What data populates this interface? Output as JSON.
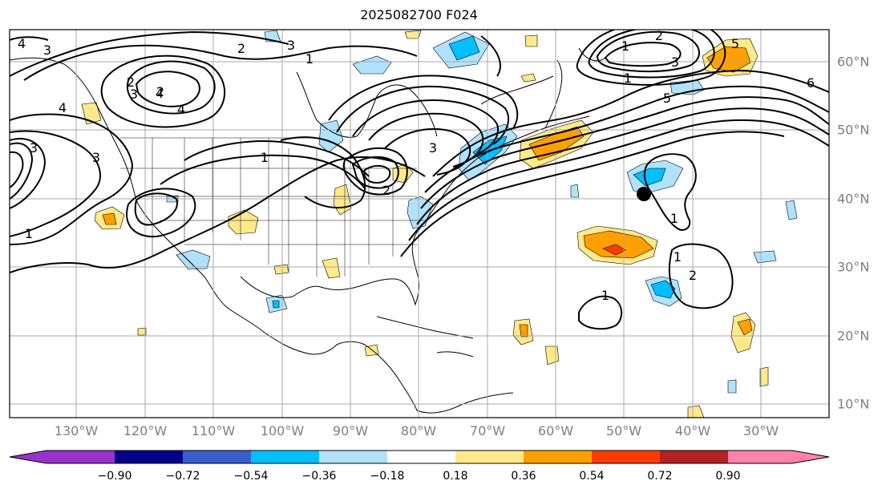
{
  "title": "2025082700 F024",
  "map": {
    "longitude_labels": [
      "130°W",
      "120°W",
      "110°W",
      "100°W",
      "90°W",
      "80°W",
      "70°W",
      "60°W",
      "50°W",
      "40°W",
      "30°W"
    ],
    "latitude_labels": [
      "60°N",
      "50°N",
      "40°N",
      "30°N",
      "20°N",
      "10°N"
    ],
    "contour_labels": [
      "4",
      "3",
      "2",
      "3",
      "1",
      "2",
      "3",
      "4",
      "2",
      "4",
      "4",
      "5",
      "3",
      "3",
      "1",
      "3",
      "1",
      "2",
      "1",
      "3",
      "1",
      "2",
      "5",
      "6",
      "1",
      "1",
      "2",
      "1"
    ]
  },
  "colorbar": {
    "ticks": [
      "−0.90",
      "−0.72",
      "−0.54",
      "−0.36",
      "−0.18",
      "0.18",
      "0.36",
      "0.54",
      "0.72",
      "0.90"
    ],
    "colors": [
      "#9932cc",
      "#00008b",
      "#3a5fcd",
      "#00bfff",
      "#b0e2ff",
      "#ffffff",
      "#ffe98a",
      "#ffa000",
      "#ff3c00",
      "#b22222",
      "#ff82ab"
    ]
  }
}
